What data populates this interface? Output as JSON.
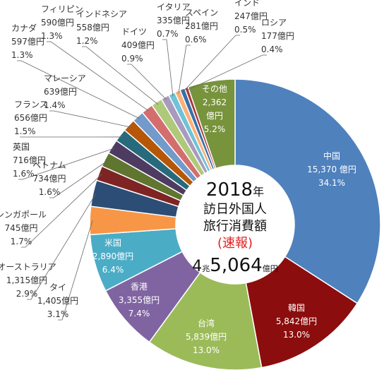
{
  "chart_data": {
    "type": "pie",
    "center": {
      "year_num": "2018",
      "year_unit": "年",
      "line1": "訪日外国人",
      "line2": "旅行消費額",
      "line3": "(速報)",
      "total_prefix": "4",
      "total_prefix_unit": "兆",
      "total_main": "5,064",
      "total_unit": "億円"
    },
    "slices": [
      {
        "name": "中国",
        "value": 15370,
        "value_text": "15,370 億円",
        "pct": "34.1%",
        "color": "#4f81bd"
      },
      {
        "name": "韓国",
        "value": 5842,
        "value_text": "5,842億円",
        "pct": "13.0%",
        "color": "#8b0d0d"
      },
      {
        "name": "台湾",
        "value": 5839,
        "value_text": "5,839億円",
        "pct": "13.0%",
        "color": "#9bbb59"
      },
      {
        "name": "香港",
        "value": 3355,
        "value_text": "3,355億円",
        "pct": "7.4%",
        "color": "#8064a2"
      },
      {
        "name": "米国",
        "value": 2890,
        "value_text": "2,890億円",
        "pct": "6.4%",
        "color": "#4bacc6"
      },
      {
        "name": "タイ",
        "value": 1405,
        "value_text": "1,405億円",
        "pct": "3.1%",
        "color": "#f79646"
      },
      {
        "name": "オーストラリア",
        "value": 1315,
        "value_text": "1,315億円",
        "pct": "2.9%",
        "color": "#2c4d75"
      },
      {
        "name": "シンガポール",
        "value": 745,
        "value_text": "745億円",
        "pct": "1.7%",
        "color": "#7f2424"
      },
      {
        "name": "ベトナム",
        "value": 734,
        "value_text": "734億円",
        "pct": "1.6%",
        "color": "#5f7530"
      },
      {
        "name": "英国",
        "value": 716,
        "value_text": "716億円",
        "pct": "1.6%",
        "color": "#4d3b62"
      },
      {
        "name": "フランス",
        "value": 656,
        "value_text": "656億円",
        "pct": "1.5%",
        "color": "#276a7c"
      },
      {
        "name": "マレーシア",
        "value": 639,
        "value_text": "639億円",
        "pct": "1.4%",
        "color": "#b65708"
      },
      {
        "name": "カナダ",
        "value": 597,
        "value_text": "597億円",
        "pct": "1.3%",
        "color": "#729aca"
      },
      {
        "name": "フィリピン",
        "value": 590,
        "value_text": "590億円",
        "pct": "1.3%",
        "color": "#d46e6e"
      },
      {
        "name": "インドネシア",
        "value": 558,
        "value_text": "558億円",
        "pct": "1.2%",
        "color": "#afc97a"
      },
      {
        "name": "ドイツ",
        "value": 409,
        "value_text": "409億円",
        "pct": "0.9%",
        "color": "#a99bbd"
      },
      {
        "name": "イタリア",
        "value": 335,
        "value_text": "335億円",
        "pct": "0.7%",
        "color": "#6fc3d8"
      },
      {
        "name": "スペイン",
        "value": 281,
        "value_text": "281億円",
        "pct": "0.6%",
        "color": "#f9b177"
      },
      {
        "name": "インド",
        "value": 247,
        "value_text": "247億円",
        "pct": "0.5%",
        "color": "#3a6ea8"
      },
      {
        "name": "ロシア",
        "value": 177,
        "value_text": "177億円",
        "pct": "0.4%",
        "color": "#a83a3a"
      },
      {
        "name": "その他",
        "value": 2362,
        "value_text": "2,362\n億円",
        "pct": "5.2%",
        "color": "#77933c"
      }
    ]
  }
}
